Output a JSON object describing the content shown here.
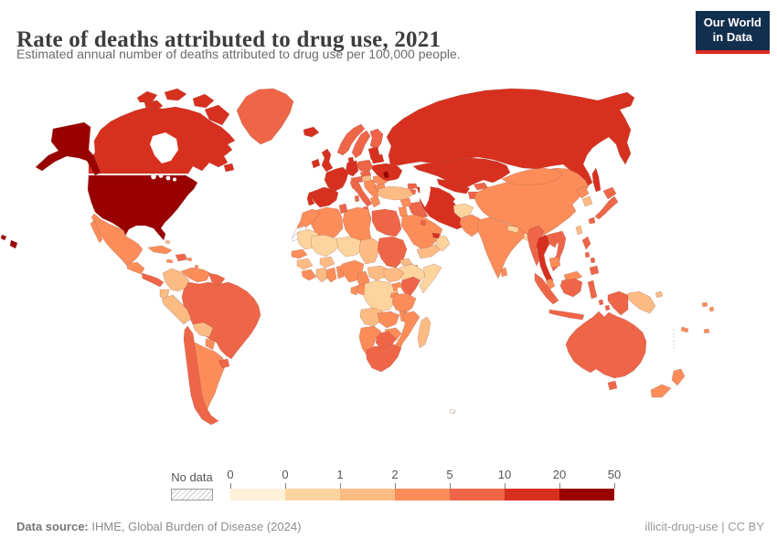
{
  "header": {
    "title": "Rate of deaths attributed to drug use, 2021",
    "subtitle": "Estimated annual number of deaths attributed to drug use per 100,000 people."
  },
  "logo": {
    "line1": "Our World",
    "line2": "in Data"
  },
  "legend": {
    "no_data_label": "No data",
    "ticks": [
      "0",
      "0",
      "1",
      "2",
      "5",
      "10",
      "20",
      "50"
    ]
  },
  "footer": {
    "source_label": "Data source:",
    "source_text": "IHME, Global Burden of Disease (2024)",
    "license_text": "illicit-drug-use | CC BY"
  },
  "chart_data": {
    "type": "heatmap",
    "subtype": "choropleth-world-map",
    "title": "Rate of deaths attributed to drug use, 2021",
    "unit": "deaths per 100,000 people",
    "year": "2021",
    "legend_position": "bottom",
    "color_scale": {
      "bin_labels": [
        "0",
        "0",
        "1",
        "2",
        "5",
        "10",
        "20",
        "50"
      ],
      "colors": [
        "#fef0d9",
        "#fdd49e",
        "#fdbb84",
        "#fc8d59",
        "#ef6548",
        "#d7301f",
        "#990000"
      ],
      "no_data_fill": "#ffffff",
      "no_data_hatch": "#c0c0c0"
    },
    "no_data_regions": [
      "Western Sahara",
      "French Southern Territories"
    ],
    "countries": {
      "United States": 6,
      "Canada": 5,
      "Greenland": 4,
      "Mexico": 3,
      "Guatemala": 3,
      "Panama": 4,
      "Cuba": 3,
      "Dominican Republic": 4,
      "Caribbean islands": 3,
      "Bahamas": 2,
      "Colombia": 2,
      "Venezuela": 3,
      "Guyana": 4,
      "Ecuador": 2,
      "Peru": 2,
      "Brazil": 4,
      "Bolivia": 2,
      "Paraguay": 3,
      "Argentina": 3,
      "Chile": 4,
      "Uruguay": 4,
      "Iceland": 5,
      "Ireland": 5,
      "United Kingdom": 5,
      "Norway": 4,
      "Sweden": 4,
      "Finland": 4,
      "Denmark": 5,
      "Germany": 5,
      "Poland": 4,
      "Czechia": 4,
      "Austria": 4,
      "France": 5,
      "Spain": 5,
      "Portugal": 5,
      "Italy": 4,
      "Hungary": 2,
      "Serbia": 3,
      "Greece": 3,
      "Romania": 3,
      "Bulgaria": 3,
      "Baltic states": 5,
      "Belarus": 5,
      "Ukraine": 5,
      "Moldova": 6,
      "Russia": 5,
      "Kazakhstan": 5,
      "Uzbekistan": 5,
      "Turkmenistan": 5,
      "Kyrgyzstan": 4,
      "Tajikistan": 4,
      "Georgia": 4,
      "Azerbaijan": 5,
      "Armenia": 4,
      "Turkey": 2,
      "Syria": 3,
      "Iraq": 4,
      "Iran": 5,
      "Jordan": 3,
      "Saudi Arabia": 3,
      "Yemen": 2,
      "Oman": 1,
      "United Arab Emirates": 5,
      "Kuwait": 4,
      "Afghanistan": 1,
      "Pakistan": 3,
      "India": 3,
      "Nepal": 1,
      "Bangladesh": 1,
      "Sri Lanka": 3,
      "China": 3,
      "Mongolia": 3,
      "North Korea": 3,
      "South Korea": 2,
      "Japan": 4,
      "Taiwan": 2,
      "Myanmar": 4,
      "Thailand": 5,
      "Laos": 4,
      "Vietnam": 4,
      "Cambodia": 3,
      "Malaysia": 3,
      "Indonesia": 4,
      "Philippines": 4,
      "Papua New Guinea": 2,
      "Solomon Islands": 3,
      "Fiji": 3,
      "New Caledonia": 3,
      "Australia": 4,
      "New Zealand": 3,
      "Morocco": 3,
      "Algeria": 3,
      "Tunisia": 4,
      "Libya": 3,
      "Egypt": 4,
      "Mauritania": 1,
      "Mali": 1,
      "Niger": 1,
      "Chad": 2,
      "Sudan": 4,
      "Eritrea": 2,
      "Djibouti": 2,
      "Ethiopia": 1,
      "Somalia": 1,
      "Senegal": 3,
      "Guinea": 2,
      "Sierra Leone": 3,
      "Cote d'Ivoire": 2,
      "Ghana": 3,
      "Benin": 3,
      "Burkina Faso": 2,
      "Nigeria": 3,
      "Cameroon": 3,
      "Central African Republic": 2,
      "South Sudan": 2,
      "Democratic Republic of Congo": 1,
      "Congo": 3,
      "Gabon": 3,
      "Uganda": 3,
      "Kenya": 4,
      "Rwanda": 3,
      "Tanzania": 3,
      "Angola": 2,
      "Zambia": 3,
      "Malawi": 3,
      "Mozambique": 3,
      "Zimbabwe": 3,
      "Botswana": 4,
      "Namibia": 3,
      "South Africa": 4,
      "Madagascar": 2
    }
  }
}
